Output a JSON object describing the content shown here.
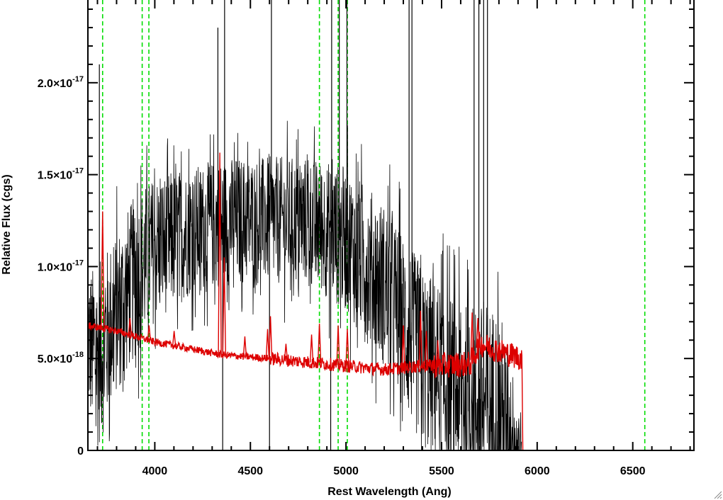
{
  "chart_data": {
    "type": "line",
    "xlabel": "Rest Wavelength (Ang)",
    "ylabel": "Relative Flux (cgs)",
    "xlim": [
      3650,
      6820
    ],
    "ylim": [
      0,
      2.45e-17
    ],
    "x_ticks": [
      {
        "value": 4000,
        "label": "4000"
      },
      {
        "value": 4500,
        "label": "4500"
      },
      {
        "value": 5000,
        "label": "5000"
      },
      {
        "value": 5500,
        "label": "5500"
      },
      {
        "value": 6000,
        "label": "6000"
      },
      {
        "value": 6500,
        "label": "6500"
      }
    ],
    "y_ticks": [
      {
        "value": 0,
        "mantissa": "0",
        "exponent": ""
      },
      {
        "value": 5e-18,
        "mantissa": "5.0×10",
        "exponent": "-18"
      },
      {
        "value": 1e-17,
        "mantissa": "1.0×10",
        "exponent": "-17"
      },
      {
        "value": 1.5e-17,
        "mantissa": "1.5×10",
        "exponent": "-17"
      },
      {
        "value": 2e-17,
        "mantissa": "2.0×10",
        "exponent": "-17"
      }
    ],
    "reference_lines": {
      "color": "#00dd00",
      "style": "dashed",
      "x": [
        3727,
        3934,
        3969,
        4861,
        4959,
        5007,
        6563
      ]
    },
    "series": [
      {
        "role": "observed spectrum (noisy)",
        "color": "#000000",
        "envelope": [
          {
            "x": 3650,
            "mid": 6e-18,
            "amp": 4e-18
          },
          {
            "x": 3700,
            "mid": 5e-18,
            "amp": 5e-18
          },
          {
            "x": 3800,
            "mid": 7.5e-18,
            "amp": 4.5e-18
          },
          {
            "x": 3900,
            "mid": 9.5e-18,
            "amp": 4.5e-18
          },
          {
            "x": 4000,
            "mid": 1.1e-17,
            "amp": 4e-18
          },
          {
            "x": 4200,
            "mid": 1.2e-17,
            "amp": 3.5e-18
          },
          {
            "x": 4400,
            "mid": 1.25e-17,
            "amp": 3.5e-18
          },
          {
            "x": 4600,
            "mid": 1.25e-17,
            "amp": 3.5e-18
          },
          {
            "x": 4800,
            "mid": 1.25e-17,
            "amp": 3.5e-18
          },
          {
            "x": 5000,
            "mid": 1.15e-17,
            "amp": 4e-18
          },
          {
            "x": 5200,
            "mid": 9e-18,
            "amp": 4.5e-18
          },
          {
            "x": 5400,
            "mid": 5e-18,
            "amp": 5e-18
          },
          {
            "x": 5600,
            "mid": 3e-18,
            "amp": 5e-18
          },
          {
            "x": 5800,
            "mid": 2e-18,
            "amp": 6e-18
          },
          {
            "x": 5920,
            "mid": 0.0,
            "amp": 2e-18
          }
        ],
        "spikes": [
          {
            "x": 3710,
            "y": 2.1e-17
          },
          {
            "x": 4330,
            "y": 2.3e-17
          },
          {
            "x": 4355,
            "y": 0
          },
          {
            "x": 4365,
            "y": 2.45e-17
          },
          {
            "x": 4600,
            "y": 0
          },
          {
            "x": 4610,
            "y": 2.45e-17
          },
          {
            "x": 4920,
            "y": 0
          },
          {
            "x": 4925,
            "y": 2.45e-17
          },
          {
            "x": 4965,
            "y": 2.45e-17
          },
          {
            "x": 5005,
            "y": 2.45e-17
          },
          {
            "x": 5330,
            "y": 2.45e-17
          },
          {
            "x": 5345,
            "y": 2.45e-17
          },
          {
            "x": 5670,
            "y": 2.45e-17
          },
          {
            "x": 5695,
            "y": 2.45e-17
          },
          {
            "x": 5720,
            "y": 2.45e-17
          },
          {
            "x": 5740,
            "y": 2.45e-17
          }
        ]
      },
      {
        "role": "model continuum",
        "color": "#dd0000",
        "continuum": [
          {
            "x": 3650,
            "y": 6.8e-18
          },
          {
            "x": 3800,
            "y": 6.5e-18
          },
          {
            "x": 4000,
            "y": 5.9e-18
          },
          {
            "x": 4200,
            "y": 5.5e-18
          },
          {
            "x": 4350,
            "y": 5.2e-18
          },
          {
            "x": 4600,
            "y": 5e-18
          },
          {
            "x": 4800,
            "y": 4.8e-18
          },
          {
            "x": 5000,
            "y": 4.6e-18
          },
          {
            "x": 5200,
            "y": 4.4e-18
          },
          {
            "x": 5400,
            "y": 4.6e-18
          },
          {
            "x": 5650,
            "y": 4.7e-18
          },
          {
            "x": 5700,
            "y": 5.8e-18
          },
          {
            "x": 5920,
            "y": 5e-18
          },
          {
            "x": 5925,
            "y": 0
          },
          {
            "x": 6820,
            "y": 0
          }
        ],
        "emission_lines": [
          {
            "x": 3727,
            "y": 1.3e-17
          },
          {
            "x": 3870,
            "y": 7.2e-18
          },
          {
            "x": 3970,
            "y": 6.8e-18
          },
          {
            "x": 4101,
            "y": 6.5e-18
          },
          {
            "x": 4340,
            "y": 1.62e-17
          },
          {
            "x": 4363,
            "y": 1.05e-17
          },
          {
            "x": 4471,
            "y": 6.2e-18
          },
          {
            "x": 4590,
            "y": 6.6e-18
          },
          {
            "x": 4605,
            "y": 7.3e-18
          },
          {
            "x": 4686,
            "y": 5.8e-18
          },
          {
            "x": 4820,
            "y": 6.3e-18
          },
          {
            "x": 4861,
            "y": 6.9e-18
          },
          {
            "x": 4959,
            "y": 6.8e-18
          },
          {
            "x": 5007,
            "y": 6.6e-18
          },
          {
            "x": 5300,
            "y": 6.8e-18
          },
          {
            "x": 5300,
            "y": 6.8e-18
          },
          {
            "x": 5390,
            "y": 7.6e-18
          },
          {
            "x": 5420,
            "y": 6.5e-18
          },
          {
            "x": 5480,
            "y": 6e-18
          },
          {
            "x": 5660,
            "y": 7.5e-18
          },
          {
            "x": 5690,
            "y": 7.2e-18
          }
        ]
      }
    ],
    "grid": false,
    "legend": "none"
  }
}
